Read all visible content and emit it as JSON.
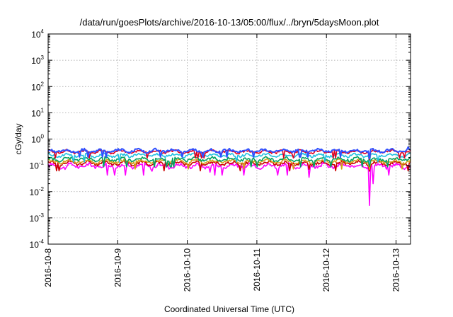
{
  "chart_data": {
    "type": "line",
    "title": "/data/run/goesPlots/archive/2016-10-13/05:00/flux/../bryn/5daysMoon.plot",
    "xlabel": "Coordinated Universal Time (UTC)",
    "ylabel": "cGy/day",
    "yscale": "log",
    "ylim": [
      0.0001,
      10000
    ],
    "y_ticks": [
      {
        "base": "10",
        "exp": "-4"
      },
      {
        "base": "10",
        "exp": "-3"
      },
      {
        "base": "10",
        "exp": "-2"
      },
      {
        "base": "10",
        "exp": "-1"
      },
      {
        "base": "10",
        "exp": "0"
      },
      {
        "base": "10",
        "exp": "1"
      },
      {
        "base": "10",
        "exp": "2"
      },
      {
        "base": "10",
        "exp": "3"
      },
      {
        "base": "10",
        "exp": "4"
      }
    ],
    "x_range": [
      "2016-10-08",
      "2016-10-13T05:00"
    ],
    "x_ticks": [
      "2016-10-8",
      "2016-10-9",
      "2016-10-10",
      "2016-10-11",
      "2016-10-12",
      "2016-10-13"
    ],
    "grid": true,
    "legend": "none",
    "series": [
      {
        "color": "#ff00ff",
        "base": 0.095,
        "spread": 0.22,
        "spikes": [
          [
            "2016-10-08T06:00",
            0.07
          ],
          [
            "2016-10-09T12:00",
            0.06
          ],
          [
            "2016-10-10T08:00",
            0.055
          ],
          [
            "2016-10-11T18:00",
            0.035
          ],
          [
            "2016-10-12T15:00",
            0.003
          ],
          [
            "2016-10-12T16:00",
            0.02
          ],
          [
            "2016-10-13T03:00",
            0.07
          ]
        ]
      },
      {
        "color": "#cc0000",
        "base": 0.12,
        "spread": 0.18,
        "spikes": [
          [
            "2016-10-11T18:00",
            0.07
          ],
          [
            "2016-10-12T15:00",
            0.06
          ]
        ]
      },
      {
        "color": "#d4a017",
        "base": 0.14,
        "spread": 0.18,
        "spikes": [
          [
            "2016-10-12T15:00",
            0.07
          ]
        ]
      },
      {
        "color": "#00a060",
        "base": 0.17,
        "spread": 0.18,
        "spikes": [
          [
            "2016-10-12T15:00",
            0.09
          ]
        ]
      },
      {
        "color": "#20c0e0",
        "base": 0.24,
        "spread": 0.16,
        "spikes": [
          [
            "2016-10-12T15:00",
            0.12
          ]
        ]
      },
      {
        "color": "#e00020",
        "base": 0.33,
        "spread": 0.15,
        "spikes": [
          [
            "2016-10-12T15:00",
            0.16
          ]
        ]
      },
      {
        "color": "#3050ff",
        "base": 0.36,
        "spread": 0.15,
        "spikes": [
          [
            "2016-10-12T15:00",
            0.18
          ],
          [
            "2016-10-13T04:00",
            0.5
          ]
        ]
      }
    ]
  }
}
